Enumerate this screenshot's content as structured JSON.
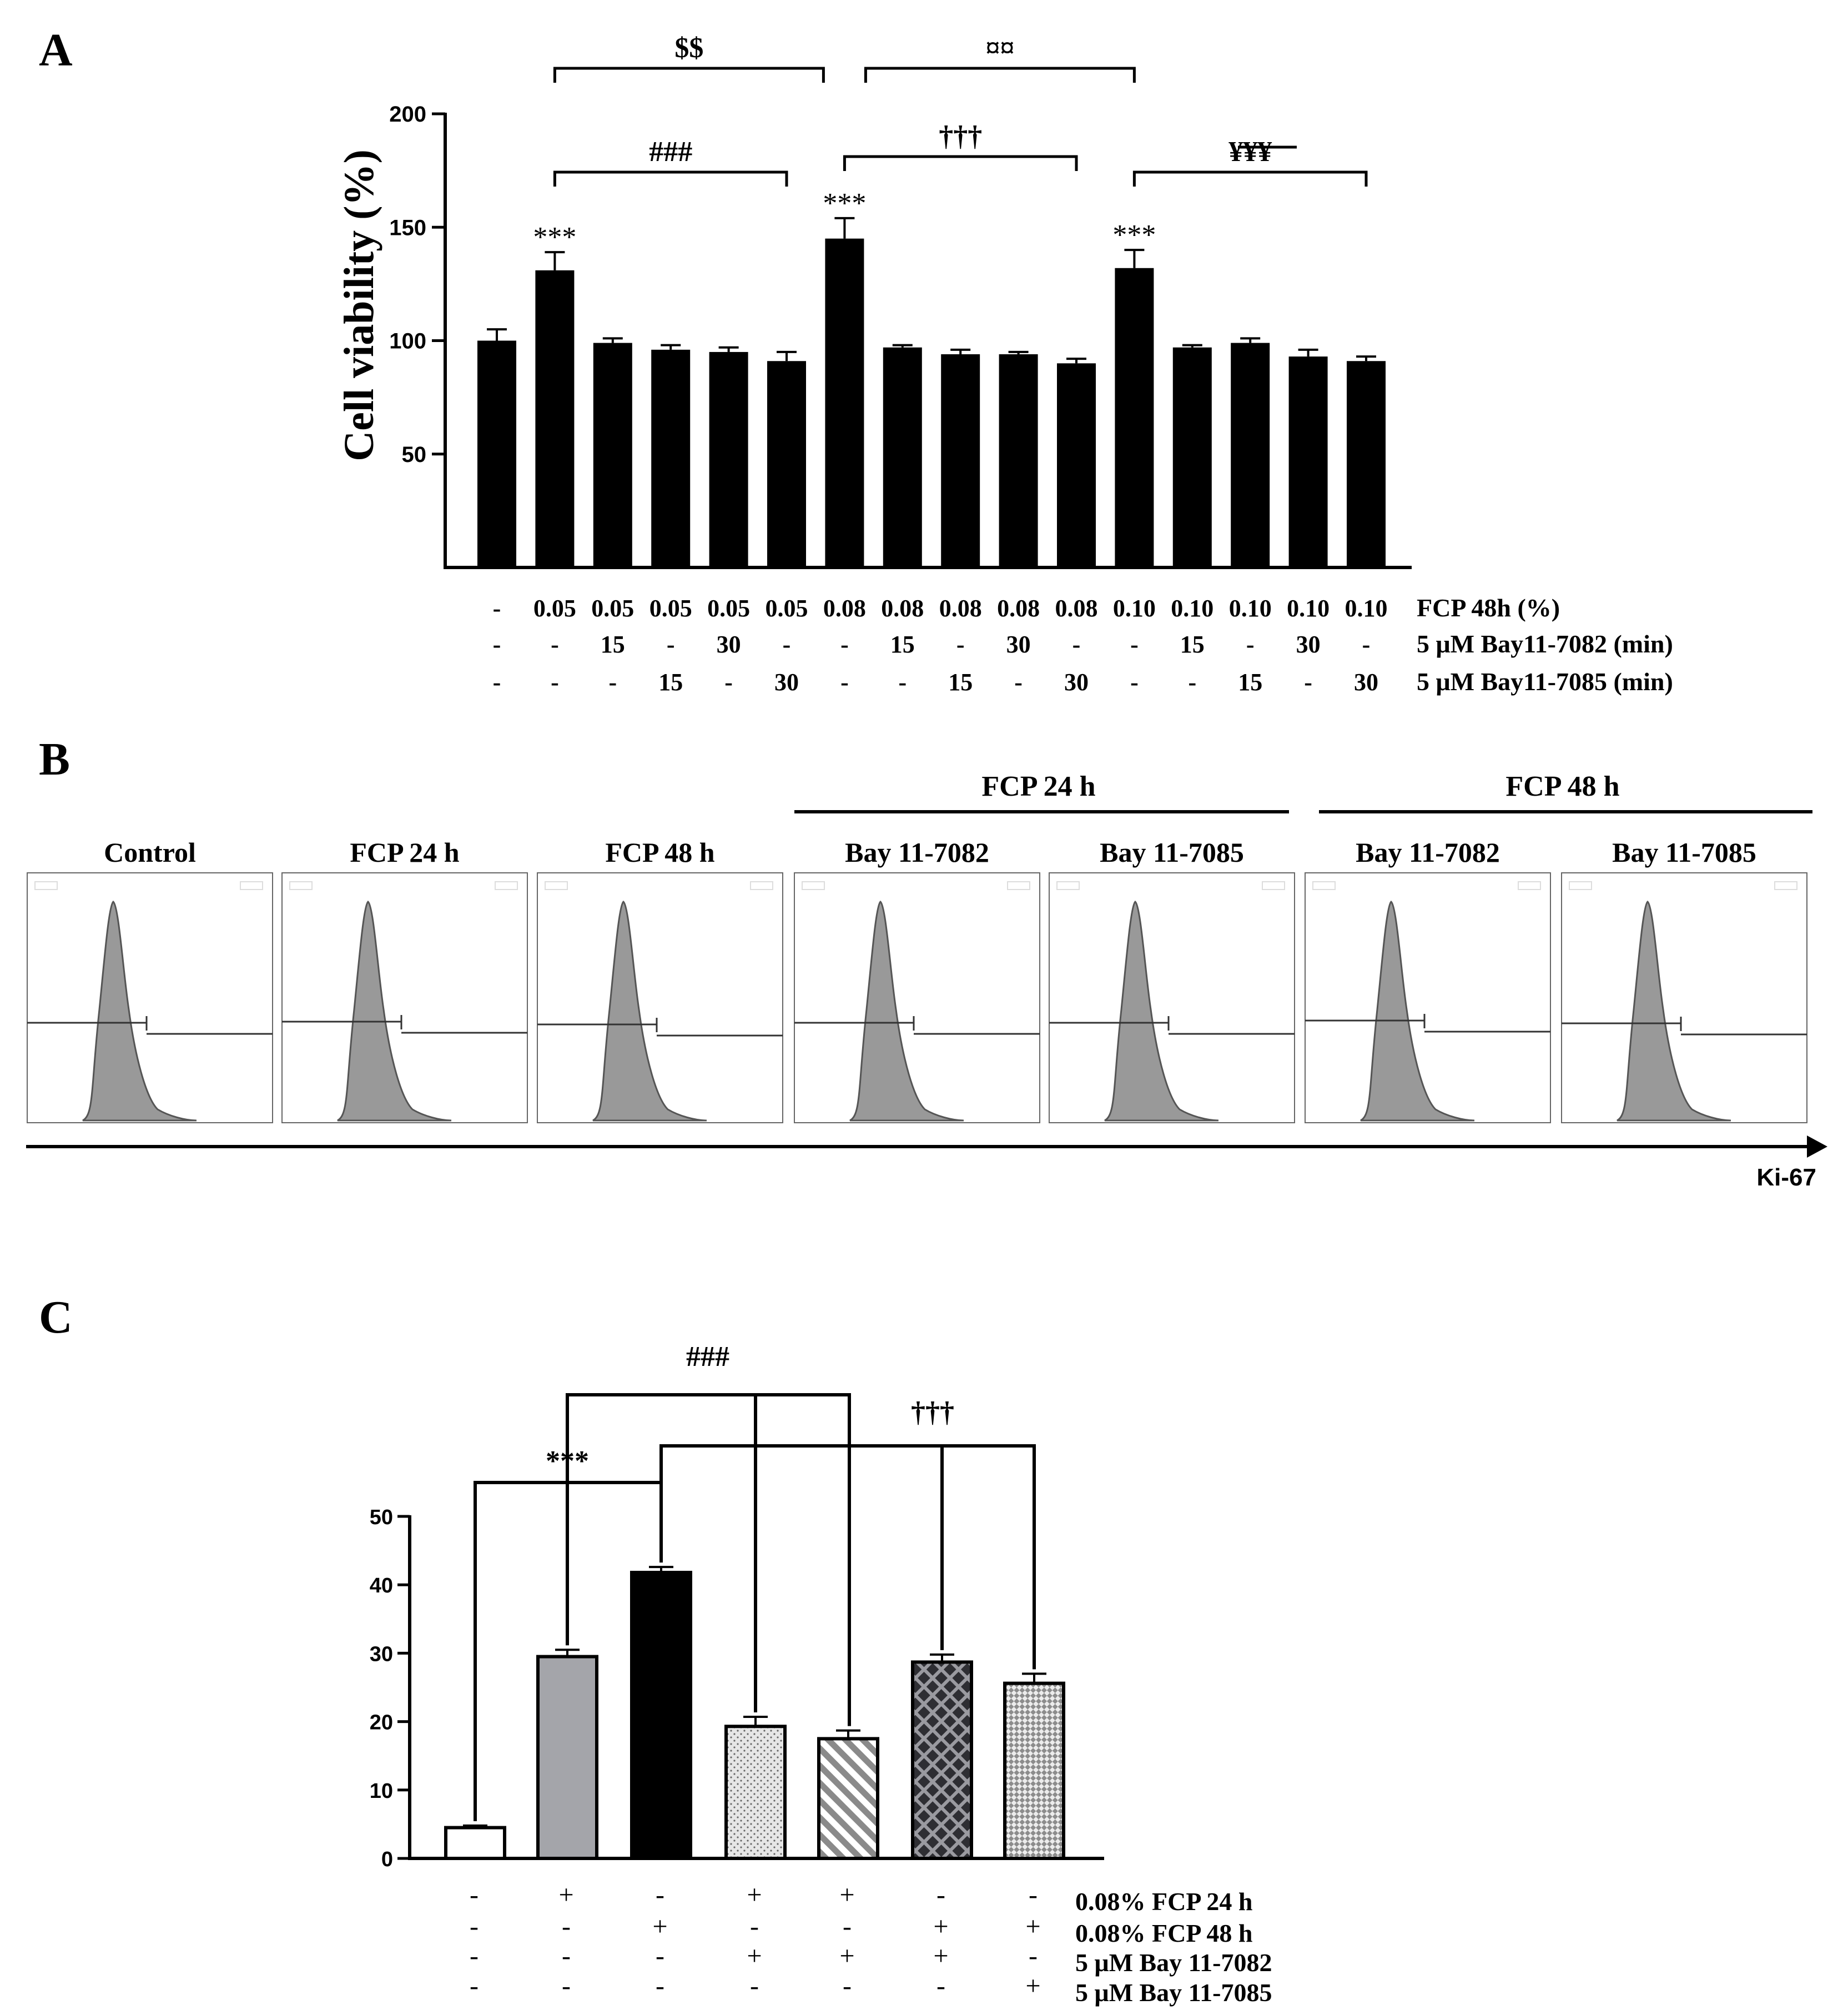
{
  "panel_labels": {
    "a": "A",
    "b": "B",
    "c": "C"
  },
  "colors": {
    "ink": "#000000",
    "hist_fill": "#999999",
    "gray_bar": "#a4a5aa",
    "light_bar": "#e4e4e4",
    "stripe_bar": "#9a9a9a",
    "cross_bar": "#2e2e33",
    "check_bar": "#cfcfcf"
  },
  "chart_data": [
    {
      "id": "A",
      "type": "bar",
      "ylabel": "Cell viability (%)",
      "ylim": [
        0,
        200
      ],
      "yticks": [
        50,
        100,
        150,
        200
      ],
      "categories": [
        "1",
        "2",
        "3",
        "4",
        "5",
        "6",
        "7",
        "8",
        "9",
        "10",
        "11",
        "12",
        "13",
        "14",
        "15",
        "16"
      ],
      "values": [
        100,
        131,
        99,
        96,
        95,
        91,
        145,
        97,
        94,
        94,
        90,
        132,
        97,
        99,
        93,
        91
      ],
      "errors": [
        5,
        8,
        2,
        2,
        2,
        4,
        9,
        1,
        2,
        1,
        2,
        8,
        1,
        2,
        3,
        2
      ],
      "star_marks": [
        {
          "bar": 1,
          "text": "***"
        },
        {
          "bar": 6,
          "text": "***"
        },
        {
          "bar": 11,
          "text": "***"
        }
      ],
      "brackets": [
        {
          "from": 1,
          "to": 6,
          "text": "$$",
          "level": 0
        },
        {
          "from": 6,
          "to": 11,
          "text": "¤¤",
          "level": 0
        },
        {
          "from": 1,
          "to": 5,
          "text": "###",
          "level": 2
        },
        {
          "from": 6,
          "to": 10,
          "text": "†††",
          "level": 1
        },
        {
          "from": 11,
          "to": 15,
          "text": "¥¥¥",
          "level": 2
        }
      ],
      "table_rows": [
        {
          "label": "FCP 48h (%)",
          "cells": [
            "-",
            "0.05",
            "0.05",
            "0.05",
            "0.05",
            "0.05",
            "0.08",
            "0.08",
            "0.08",
            "0.08",
            "0.08",
            "0.10",
            "0.10",
            "0.10",
            "0.10",
            "0.10"
          ]
        },
        {
          "label": "5 μM Bay11-7082 (min)",
          "cells": [
            "-",
            "-",
            "15",
            "-",
            "30",
            "-",
            "-",
            "15",
            "-",
            "30",
            "-",
            "-",
            "15",
            "-",
            "30",
            "-"
          ]
        },
        {
          "label": "5 μM Bay11-7085 (min)",
          "cells": [
            "-",
            "-",
            "-",
            "15",
            "-",
            "30",
            "-",
            "-",
            "15",
            "-",
            "30",
            "-",
            "-",
            "15",
            "-",
            "30"
          ]
        }
      ]
    },
    {
      "id": "C",
      "type": "bar",
      "ylabel": "",
      "ylim": [
        0,
        50
      ],
      "yticks": [
        0,
        10,
        20,
        30,
        40,
        50
      ],
      "categories": [
        "1",
        "2",
        "3",
        "4",
        "5",
        "6",
        "7"
      ],
      "values": [
        4.5,
        29.5,
        41.8,
        19.3,
        17.5,
        28.7,
        25.6
      ],
      "errors": [
        0.3,
        1.0,
        0.8,
        1.4,
        1.2,
        1.1,
        1.4
      ],
      "fills": [
        "white",
        "gray",
        "black",
        "dots",
        "stripes",
        "cross",
        "check"
      ],
      "brackets": [
        {
          "text": "***"
        },
        {
          "text": "###"
        },
        {
          "text": "†††"
        }
      ],
      "table_rows": [
        {
          "label": "0.08% FCP 24 h",
          "cells": [
            "-",
            "+",
            "-",
            "+",
            "+",
            "-",
            "-"
          ]
        },
        {
          "label": "0.08% FCP 48 h",
          "cells": [
            "-",
            "-",
            "+",
            "-",
            "-",
            "+",
            "+"
          ]
        },
        {
          "label": "5 μM Bay 11-7082",
          "cells": [
            "-",
            "-",
            "-",
            "+",
            "+",
            "+",
            "-"
          ]
        },
        {
          "label": "5 μM Bay 11-7085",
          "cells": [
            "-",
            "-",
            "-",
            "-",
            "-",
            "-",
            "+"
          ]
        }
      ]
    }
  ],
  "panel_b": {
    "group_labels": [
      "FCP 24 h",
      "FCP 48 h"
    ],
    "panels": [
      "Control",
      "FCP 24 h",
      "FCP 48 h",
      "Bay 11-7082",
      "Bay 11-7085",
      "Bay 11-7082",
      "Bay 11-7085"
    ],
    "axis_label": "Ki-67"
  }
}
